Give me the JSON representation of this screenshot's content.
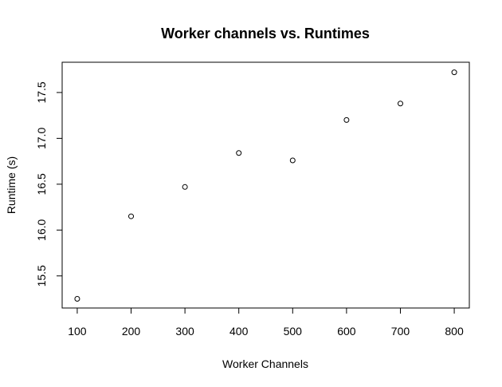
{
  "chart_data": {
    "type": "scatter",
    "title": "Worker channels vs. Runtimes",
    "xlabel": "Worker Channels",
    "ylabel": "Runtime (s)",
    "x": [
      100,
      200,
      300,
      400,
      500,
      600,
      700,
      800
    ],
    "y": [
      15.25,
      16.15,
      16.47,
      16.84,
      16.76,
      17.2,
      17.38,
      17.72
    ],
    "xlim": [
      72,
      828
    ],
    "ylim": [
      15.15,
      17.83
    ],
    "xticks": [
      100,
      200,
      300,
      400,
      500,
      600,
      700,
      800
    ],
    "yticks": [
      15.5,
      16.0,
      16.5,
      17.0,
      17.5
    ],
    "ytick_labels": [
      "15.5",
      "16.0",
      "16.5",
      "17.0",
      "17.5"
    ],
    "grid": false,
    "marker": "open-circle",
    "point_color": "#000000"
  }
}
